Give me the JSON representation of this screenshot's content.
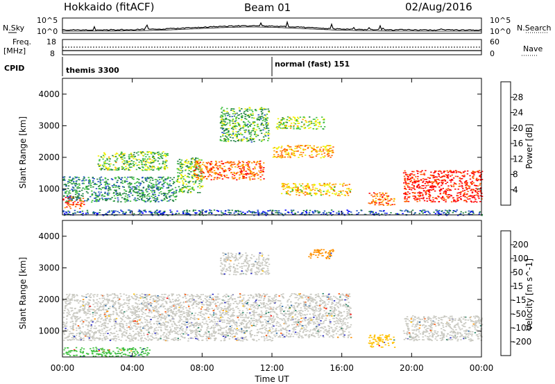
{
  "header": {
    "title": "Hokkaido (fitACF)",
    "beam": "Beam 01",
    "date": "02/Aug/2016"
  },
  "strip_labels": {
    "nsky": "N.Sky",
    "freq": "Freq.",
    "freq_unit": "[MHz]",
    "cpid": "CPID",
    "nsearch": "N.Search",
    "nave": "Nave"
  },
  "strip_ticks": {
    "nsky_top": "10^5",
    "nsky_bottom": "10^0",
    "nsearch_top": "10^5",
    "nsearch_bottom": "10^0",
    "freq_top": "18",
    "freq_bottom": "8",
    "nave_top": "60",
    "nave_bottom": "0"
  },
  "cpid": {
    "first": "themis 3300",
    "second": "normal (fast) 151"
  },
  "colors": {
    "power": [
      "#0000ff",
      "#2050c0",
      "#208040",
      "#40c040",
      "#f0f000",
      "#ffa000",
      "#ff6000",
      "#ff0000"
    ],
    "velocity_neg": [
      "#ff0000",
      "#ff5000",
      "#ff9000",
      "#ffc000",
      "#f0d020"
    ],
    "velocity_ground": "#c8c8c0",
    "velocity_pos": [
      "#40c040",
      "#208060",
      "#2060a0",
      "#2020c0"
    ]
  },
  "chart_data": [
    {
      "type": "heatmap",
      "title": "",
      "xlabel": "Time UT",
      "ylabel": "Slant Range [km]",
      "x_ticks": [
        "00:00",
        "04:00",
        "08:00",
        "12:00",
        "16:00",
        "20:00",
        "00:00"
      ],
      "y_ticks": [
        "1000",
        "2000",
        "3000",
        "4000"
      ],
      "ylim": [
        180,
        4500
      ],
      "colorbar": {
        "label": "Power [dB]",
        "ticks": [
          "4",
          "8",
          "12",
          "16",
          "20",
          "24",
          "28"
        ],
        "range": [
          0,
          30
        ]
      },
      "regions": [
        {
          "t": [
            0.0,
            1.2
          ],
          "r": [
            400,
            800
          ],
          "value": 26
        },
        {
          "t": [
            0.0,
            6.5
          ],
          "r": [
            600,
            1400
          ],
          "value": 10
        },
        {
          "t": [
            2.0,
            6.0
          ],
          "r": [
            1600,
            2200
          ],
          "value": 14
        },
        {
          "t": [
            6.5,
            8.0
          ],
          "r": [
            900,
            2000
          ],
          "value": 13
        },
        {
          "t": [
            7.5,
            11.5
          ],
          "r": [
            1300,
            1900
          ],
          "value": 24
        },
        {
          "t": [
            9.0,
            11.8
          ],
          "r": [
            2500,
            3600
          ],
          "value": 12
        },
        {
          "t": [
            12.0,
            15.5
          ],
          "r": [
            2000,
            2400
          ],
          "value": 21
        },
        {
          "t": [
            12.5,
            16.5
          ],
          "r": [
            800,
            1200
          ],
          "value": 19
        },
        {
          "t": [
            12.2,
            15.0
          ],
          "r": [
            2900,
            3300
          ],
          "value": 15
        },
        {
          "t": [
            17.5,
            19.0
          ],
          "r": [
            500,
            900
          ],
          "value": 23
        },
        {
          "t": [
            19.5,
            24.0
          ],
          "r": [
            600,
            1600
          ],
          "value": 28
        },
        {
          "t": [
            0.0,
            24.0
          ],
          "r": [
            180,
            350
          ],
          "value": 6
        }
      ]
    },
    {
      "type": "heatmap",
      "title": "",
      "xlabel": "Time UT",
      "ylabel": "Slant Range [km]",
      "x_ticks": [
        "00:00",
        "04:00",
        "08:00",
        "12:00",
        "16:00",
        "20:00",
        "00:00"
      ],
      "y_ticks": [
        "1000",
        "2000",
        "3000",
        "4000"
      ],
      "ylim": [
        180,
        4500
      ],
      "colorbar": {
        "label": "Velocity [m s^-1]",
        "ticks": [
          "200",
          "100",
          "50",
          "15",
          "-15",
          "-50",
          "-100",
          "-200"
        ],
        "range": [
          -250,
          250
        ]
      },
      "regions": [
        {
          "t": [
            0.0,
            12.0
          ],
          "r": [
            700,
            2200
          ],
          "value": 0
        },
        {
          "t": [
            12.0,
            16.5
          ],
          "r": [
            800,
            2200
          ],
          "value": 0
        },
        {
          "t": [
            9.0,
            11.8
          ],
          "r": [
            2800,
            3500
          ],
          "value": 0
        },
        {
          "t": [
            0.0,
            5.0
          ],
          "r": [
            200,
            500
          ],
          "value": 40
        },
        {
          "t": [
            17.5,
            19.0
          ],
          "r": [
            500,
            900
          ],
          "value": -80
        },
        {
          "t": [
            19.5,
            24.0
          ],
          "r": [
            700,
            1500
          ],
          "value": 0
        },
        {
          "t": [
            14.0,
            15.5
          ],
          "r": [
            3300,
            3600
          ],
          "value": -150
        }
      ]
    }
  ]
}
